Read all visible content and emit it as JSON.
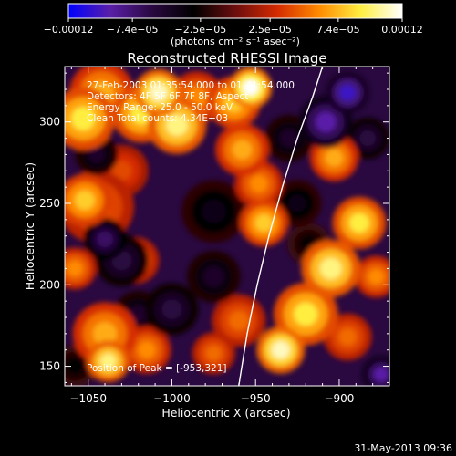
{
  "chart_data": {
    "type": "heatmap",
    "title": "Reconstructed RHESSI Image",
    "xlabel": "Heliocentric X (arcsec)",
    "ylabel": "Heliocentric Y (arcsec)",
    "xlim": [
      -1064,
      -870
    ],
    "ylim": [
      138,
      334
    ],
    "x_ticks": [
      -1050,
      -1000,
      -950,
      -900
    ],
    "x_tick_labels": [
      "−1050",
      "−1000",
      "−950",
      "−900"
    ],
    "y_ticks": [
      150,
      200,
      250,
      300
    ],
    "y_tick_labels": [
      "150",
      "200",
      "250",
      "300"
    ],
    "colorbar": {
      "range": [
        -0.00012,
        0.00012
      ],
      "ticks": [
        -0.00012,
        -7.4e-05,
        -2.5e-05,
        2.5e-05,
        7.4e-05,
        0.00012
      ],
      "tick_labels": [
        "−0.00012",
        "−7.4e−05",
        "−2.5e−05",
        "2.5e−05",
        "7.4e−05",
        "0.00012"
      ],
      "unit_label": "(photons cm⁻² s⁻¹ asec⁻²)",
      "colors": [
        "#0000ff",
        "#5a1fa8",
        "#2a0840",
        "#000000",
        "#6b0e0e",
        "#d42a00",
        "#ff8a00",
        "#ffee40",
        "#ffffff"
      ]
    },
    "annotations": [
      "27-Feb-2003 01:35:54.000 to 01:41:54.000",
      "Detectors: 4F 5F 6F 7F 8F, Aspect",
      "Energy Range: 25.0 - 50.0 keV",
      "Clean     Total counts: 4.34E+03"
    ],
    "peak_label": "Position of Peak = [-953,321]",
    "limb_curve": [
      [
        -960,
        138
      ],
      [
        -955,
        170
      ],
      [
        -949,
        200
      ],
      [
        -942,
        230
      ],
      [
        -934,
        260
      ],
      [
        -925,
        290
      ],
      [
        -916,
        315
      ],
      [
        -910,
        334
      ]
    ],
    "blobs": [
      {
        "x": -1053,
        "y": 302,
        "v": 9e-05,
        "s": 12
      },
      {
        "x": -1052,
        "y": 252,
        "v": 8e-05,
        "s": 10
      },
      {
        "x": -1045,
        "y": 248,
        "v": 5e-05,
        "s": 14
      },
      {
        "x": -1042,
        "y": 318,
        "v": 7e-05,
        "s": 12
      },
      {
        "x": -1030,
        "y": 270,
        "v": 4e-05,
        "s": 10
      },
      {
        "x": -1018,
        "y": 305,
        "v": 9e-05,
        "s": 11
      },
      {
        "x": -1008,
        "y": 318,
        "v": 0.00011,
        "s": 9
      },
      {
        "x": -997,
        "y": 298,
        "v": 0.0001,
        "s": 11
      },
      {
        "x": -985,
        "y": 315,
        "v": 6e-05,
        "s": 10
      },
      {
        "x": -963,
        "y": 312,
        "v": 8e-05,
        "s": 10
      },
      {
        "x": -953,
        "y": 321,
        "v": 0.00012,
        "s": 8
      },
      {
        "x": -958,
        "y": 283,
        "v": 7e-05,
        "s": 10
      },
      {
        "x": -948,
        "y": 262,
        "v": 6e-05,
        "s": 9
      },
      {
        "x": -945,
        "y": 238,
        "v": 8e-05,
        "s": 9
      },
      {
        "x": -1040,
        "y": 170,
        "v": 7e-05,
        "s": 12
      },
      {
        "x": -1038,
        "y": 153,
        "v": 0.0001,
        "s": 8
      },
      {
        "x": -1015,
        "y": 160,
        "v": 6e-05,
        "s": 9
      },
      {
        "x": -1022,
        "y": 215,
        "v": 5e-05,
        "s": 9
      },
      {
        "x": -1058,
        "y": 210,
        "v": 6e-05,
        "s": 8
      },
      {
        "x": -975,
        "y": 158,
        "v": 5e-05,
        "s": 8
      },
      {
        "x": -960,
        "y": 178,
        "v": 5e-05,
        "s": 10
      },
      {
        "x": -935,
        "y": 160,
        "v": 0.00011,
        "s": 9
      },
      {
        "x": -920,
        "y": 182,
        "v": 9e-05,
        "s": 12
      },
      {
        "x": -905,
        "y": 210,
        "v": 0.0001,
        "s": 11
      },
      {
        "x": -888,
        "y": 238,
        "v": 9e-05,
        "s": 10
      },
      {
        "x": -878,
        "y": 205,
        "v": 6e-05,
        "s": 8
      },
      {
        "x": -903,
        "y": 278,
        "v": 7e-05,
        "s": 9
      },
      {
        "x": -895,
        "y": 168,
        "v": 5e-05,
        "s": 9
      },
      {
        "x": -1030,
        "y": 215,
        "v": -6e-05,
        "s": 10
      },
      {
        "x": -1040,
        "y": 228,
        "v": -7e-05,
        "s": 8
      },
      {
        "x": -1000,
        "y": 185,
        "v": -6e-05,
        "s": 10
      },
      {
        "x": -1020,
        "y": 182,
        "v": -5e-05,
        "s": 9
      },
      {
        "x": -975,
        "y": 205,
        "v": -5e-05,
        "s": 10
      },
      {
        "x": -975,
        "y": 245,
        "v": -4e-05,
        "s": 12
      },
      {
        "x": -1045,
        "y": 280,
        "v": -5e-05,
        "s": 8
      },
      {
        "x": -908,
        "y": 300,
        "v": -9e-05,
        "s": 10
      },
      {
        "x": -895,
        "y": 318,
        "v": -0.0001,
        "s": 8
      },
      {
        "x": -883,
        "y": 290,
        "v": -6e-05,
        "s": 8
      },
      {
        "x": -930,
        "y": 290,
        "v": -5e-05,
        "s": 9
      },
      {
        "x": -925,
        "y": 250,
        "v": -4e-05,
        "s": 9
      },
      {
        "x": -875,
        "y": 145,
        "v": -9e-05,
        "s": 7
      },
      {
        "x": -918,
        "y": 225,
        "v": -3e-05,
        "s": 8
      },
      {
        "x": -1058,
        "y": 150,
        "v": -3e-05,
        "s": 8
      }
    ]
  },
  "footer": {
    "timestamp": "31-May-2013 09:36"
  }
}
